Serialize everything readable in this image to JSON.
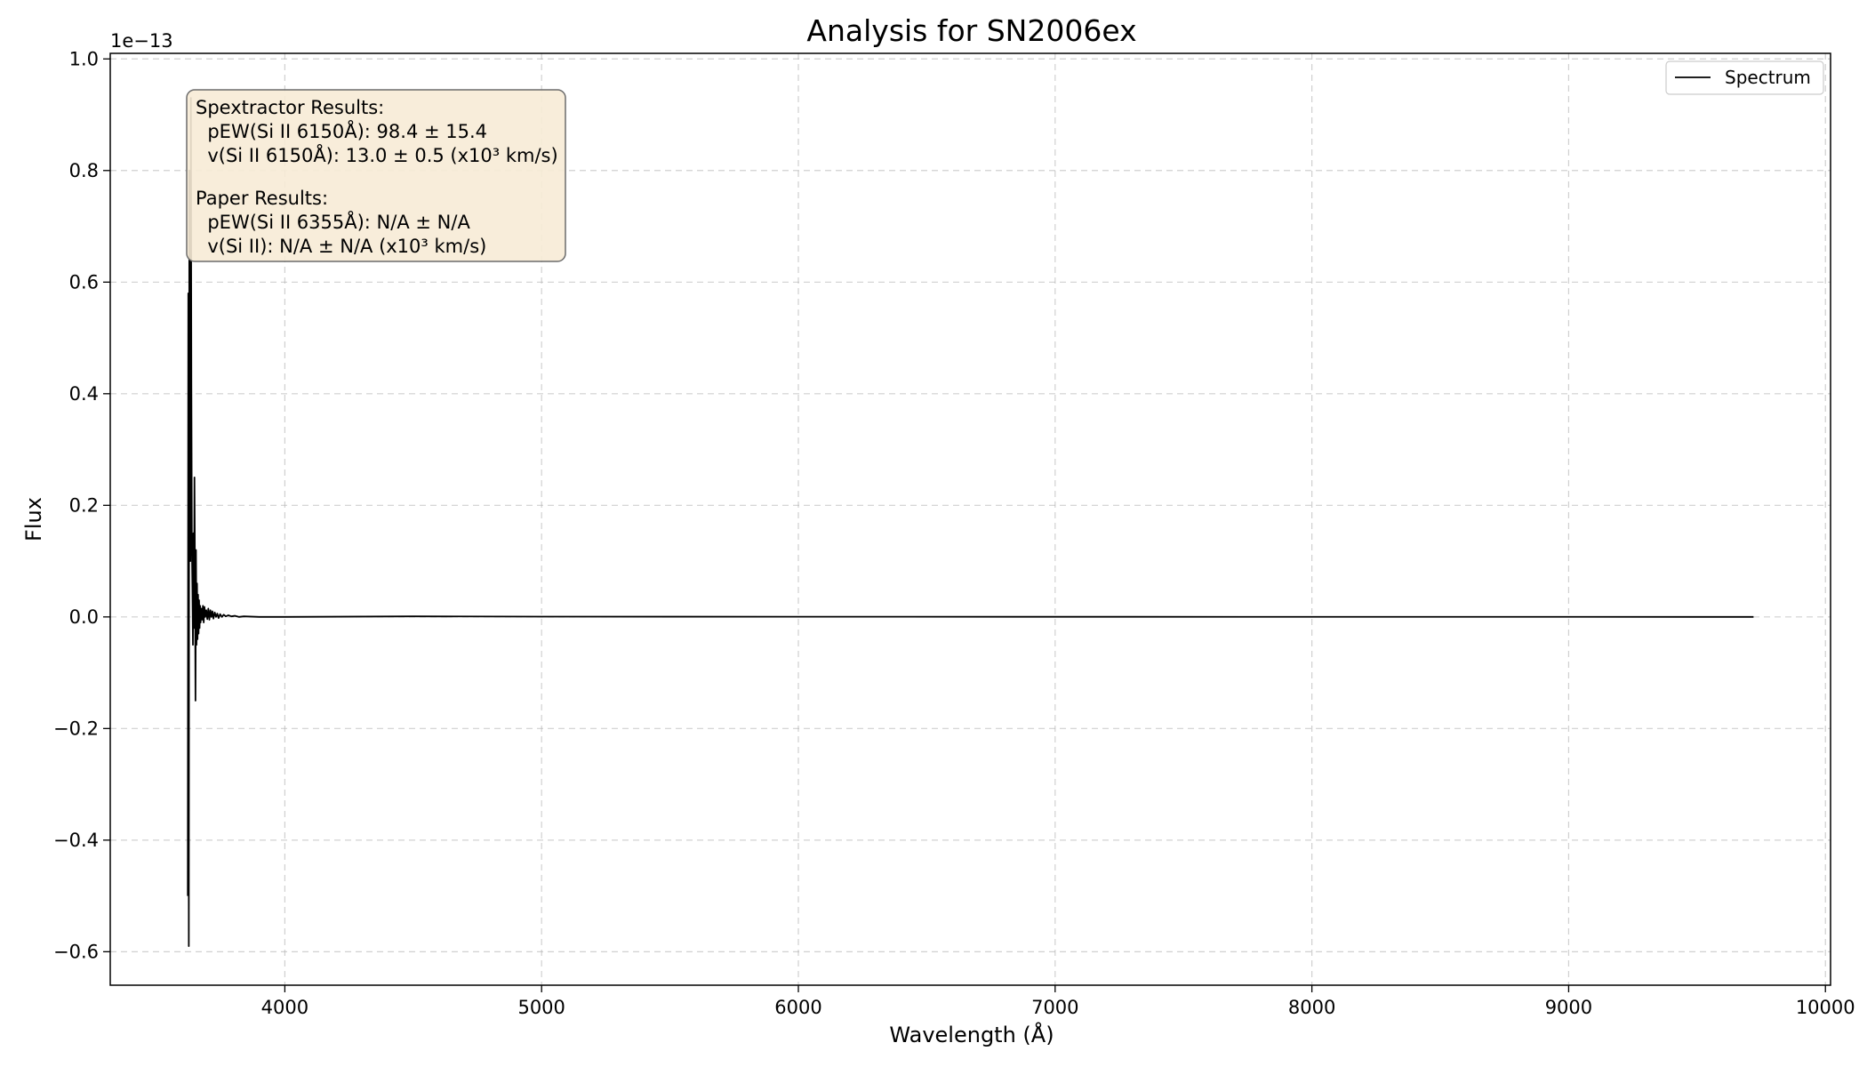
{
  "chart_data": {
    "type": "line",
    "title": "Analysis for SN2006ex",
    "xlabel": "Wavelength (Å)",
    "ylabel": "Flux",
    "y_offset_label": "1e−13",
    "y_scale_factor": 1e-13,
    "xlim": [
      3320,
      10020
    ],
    "ylim": [
      -0.66,
      1.01
    ],
    "x_ticks": [
      4000,
      5000,
      6000,
      7000,
      8000,
      9000,
      10000
    ],
    "x_tick_labels": [
      "4000",
      "5000",
      "6000",
      "7000",
      "8000",
      "9000",
      "10000"
    ],
    "y_ticks": [
      -0.6,
      -0.4,
      -0.2,
      0.0,
      0.2,
      0.4,
      0.6,
      0.8,
      1.0
    ],
    "y_tick_labels": [
      "−0.6",
      "−0.4",
      "−0.2",
      "0.0",
      "0.2",
      "0.4",
      "0.6",
      "0.8",
      "1.0"
    ],
    "grid": true,
    "legend_position": "top-right",
    "series": [
      {
        "name": "Spectrum",
        "color": "#000000",
        "x": [
          3622,
          3624,
          3626,
          3628,
          3630,
          3632,
          3634,
          3636,
          3638,
          3640,
          3642,
          3644,
          3646,
          3648,
          3650,
          3652,
          3654,
          3656,
          3658,
          3660,
          3662,
          3664,
          3666,
          3668,
          3670,
          3672,
          3675,
          3678,
          3681,
          3684,
          3687,
          3690,
          3694,
          3698,
          3702,
          3706,
          3710,
          3714,
          3718,
          3722,
          3727,
          3732,
          3737,
          3742,
          3748,
          3755,
          3762,
          3770,
          3780,
          3792,
          3806,
          3822,
          3840,
          3900,
          4000,
          4500,
          5000,
          6000,
          7000,
          8000,
          9000,
          9720
        ],
        "y": [
          -0.5,
          0.58,
          -0.59,
          0.8,
          0.33,
          0.1,
          0.93,
          0.42,
          0.12,
          0.05,
          -0.05,
          0.15,
          -0.02,
          0.25,
          0.08,
          -0.15,
          0.12,
          -0.05,
          0.06,
          -0.04,
          0.04,
          -0.03,
          0.03,
          -0.02,
          0.02,
          -0.01,
          0.015,
          -0.005,
          0.02,
          -0.01,
          0.018,
          0.0,
          0.012,
          -0.004,
          0.015,
          -0.005,
          0.012,
          0.0,
          0.01,
          -0.003,
          0.008,
          0.0,
          0.006,
          -0.002,
          0.005,
          0.0,
          0.004,
          0.001,
          0.003,
          0.001,
          0.002,
          0.0,
          0.001,
          0.0,
          0.0,
          0.001,
          0.0005,
          0.0003,
          0.0002,
          0.0001,
          0.0001,
          0.0
        ]
      }
    ],
    "annotation": {
      "lines": [
        "Spextractor Results:",
        "  pEW(Si II 6150Å): 98.4 ± 15.4",
        "  v(Si II 6150Å): 13.0 ± 0.5 (x10³ km/s)",
        "",
        "Paper Results:",
        "  pEW(Si II 6355Å): N/A ± N/A",
        "  v(Si II): N/A ± N/A (x10³ km/s)"
      ],
      "background": "#f7ebd6",
      "border": "#6b6b6b"
    },
    "legend": [
      {
        "label": "Spectrum",
        "color": "#000000"
      }
    ]
  }
}
